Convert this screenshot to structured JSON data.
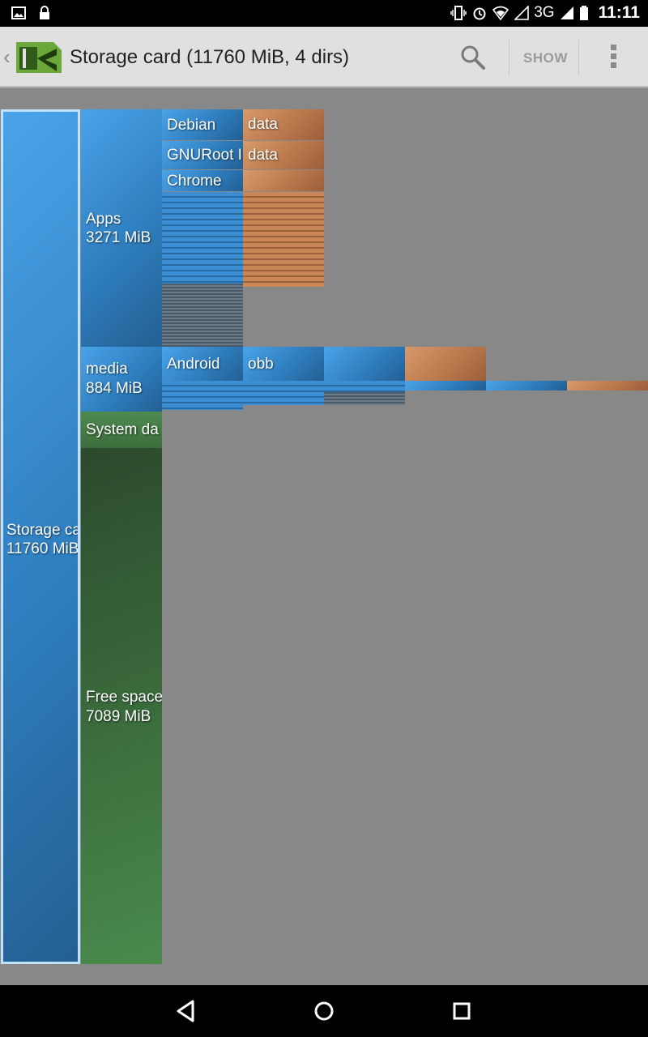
{
  "status_bar": {
    "icons_left": [
      "image-icon",
      "lock-icon"
    ],
    "icons_right": [
      "vibrate-icon",
      "alarm-icon",
      "wifi-icon",
      "signal-icon",
      "battery-icon"
    ],
    "network": "3G",
    "time": "11:11"
  },
  "action_bar": {
    "title": "Storage card (11760 MiB, 4 dirs)",
    "show_label": "SHOW"
  },
  "treemap": {
    "root": {
      "name": "Storage ca",
      "size": "11760 MiB"
    },
    "apps": {
      "name": "Apps",
      "size": "3271 MiB",
      "children": [
        {
          "name": "Debian",
          "child": "data"
        },
        {
          "name": "GNURoot I",
          "child": "data"
        },
        {
          "name": "Chrome"
        }
      ]
    },
    "media": {
      "name": "media",
      "size": "884 MiB",
      "children": [
        {
          "name": "Android",
          "child": "obb"
        }
      ]
    },
    "system": {
      "name": "System da"
    },
    "free": {
      "name": "Free space",
      "size": "7089 MiB"
    }
  },
  "colors": {
    "files": "#2f7fc0",
    "data": "#b8764a",
    "free": "#3b6e3d",
    "background": "#888888"
  }
}
